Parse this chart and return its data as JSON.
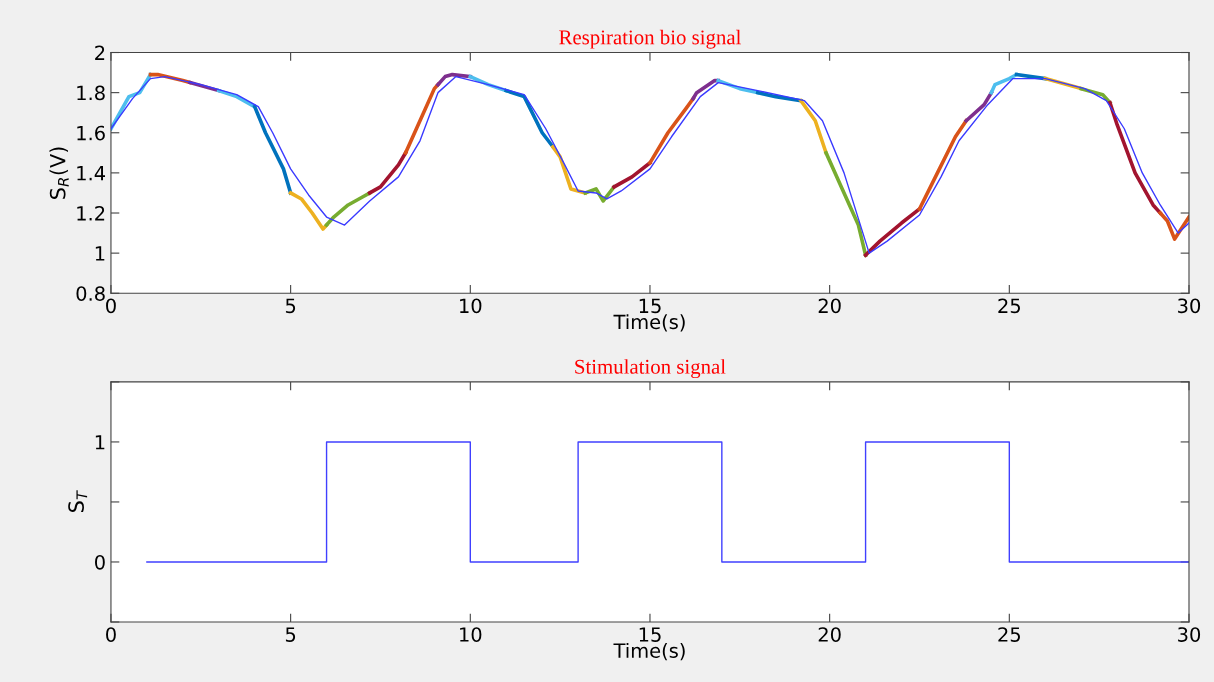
{
  "chart_data": [
    {
      "type": "line",
      "title": "Respiration bio signal",
      "xlabel": "Time(s)",
      "ylabel": "S$_{R}$(V)",
      "xlim": [
        0,
        30
      ],
      "xticks": [
        0,
        5,
        10,
        15,
        20,
        25,
        30
      ],
      "ylim": [
        0.8,
        2
      ],
      "yticks": [
        0.8,
        1,
        1.2,
        1.4,
        1.6,
        1.8,
        2
      ],
      "grid": false,
      "marker": "none",
      "line_style": "solid",
      "series": [
        {
          "color": "#4dbeee",
          "x": [
            0,
            0.5,
            0.8,
            1.0,
            1.1
          ],
          "values": [
            1.62,
            1.78,
            1.8,
            1.86,
            1.89
          ]
        },
        {
          "color": "#d95319",
          "x": [
            1.1,
            1.3,
            2.0,
            2.2
          ],
          "values": [
            1.89,
            1.89,
            1.86,
            1.85
          ]
        },
        {
          "color": "#7e2f8e",
          "x": [
            2.2,
            3.0
          ],
          "values": [
            1.85,
            1.81
          ]
        },
        {
          "color": "#4dbeee",
          "x": [
            3.0,
            3.5,
            4.0
          ],
          "values": [
            1.81,
            1.78,
            1.73
          ]
        },
        {
          "color": "#0072bd",
          "x": [
            4.0,
            4.3,
            4.8,
            5.0
          ],
          "values": [
            1.73,
            1.6,
            1.42,
            1.3
          ]
        },
        {
          "color": "#edb120",
          "x": [
            5.0,
            5.3,
            5.6,
            5.9,
            6.0
          ],
          "values": [
            1.3,
            1.27,
            1.2,
            1.12,
            1.14
          ]
        },
        {
          "color": "#77ac30",
          "x": [
            6.0,
            6.2,
            6.6,
            7.0,
            7.2
          ],
          "values": [
            1.14,
            1.18,
            1.24,
            1.28,
            1.3
          ]
        },
        {
          "color": "#a2142f",
          "x": [
            7.2,
            7.5,
            8.0,
            8.2
          ],
          "values": [
            1.3,
            1.33,
            1.44,
            1.5
          ]
        },
        {
          "color": "#d95319",
          "x": [
            8.2,
            8.5,
            9.0,
            9.1
          ],
          "values": [
            1.5,
            1.62,
            1.82,
            1.84
          ]
        },
        {
          "color": "#7e2f8e",
          "x": [
            9.1,
            9.3,
            9.5,
            10.0
          ],
          "values": [
            1.84,
            1.88,
            1.89,
            1.88
          ]
        },
        {
          "color": "#4dbeee",
          "x": [
            10.0,
            10.5,
            11.0
          ],
          "values": [
            1.88,
            1.84,
            1.81
          ]
        },
        {
          "color": "#0072bd",
          "x": [
            11.0,
            11.5,
            12.0,
            12.3
          ],
          "values": [
            1.81,
            1.78,
            1.6,
            1.53
          ]
        },
        {
          "color": "#edb120",
          "x": [
            12.3,
            12.5,
            12.8,
            13.2
          ],
          "values": [
            1.53,
            1.48,
            1.32,
            1.3
          ]
        },
        {
          "color": "#77ac30",
          "x": [
            13.2,
            13.5,
            13.7,
            14.0
          ],
          "values": [
            1.3,
            1.32,
            1.26,
            1.33
          ]
        },
        {
          "color": "#a2142f",
          "x": [
            14.0,
            14.5,
            15.0
          ],
          "values": [
            1.33,
            1.38,
            1.45
          ]
        },
        {
          "color": "#d95319",
          "x": [
            15.0,
            15.5,
            16.0,
            16.2
          ],
          "values": [
            1.45,
            1.6,
            1.72,
            1.77
          ]
        },
        {
          "color": "#7e2f8e",
          "x": [
            16.2,
            16.3,
            16.8,
            16.9
          ],
          "values": [
            1.77,
            1.8,
            1.86,
            1.86
          ]
        },
        {
          "color": "#4dbeee",
          "x": [
            16.9,
            17.5,
            18.0
          ],
          "values": [
            1.86,
            1.82,
            1.8
          ]
        },
        {
          "color": "#0072bd",
          "x": [
            18.0,
            18.5,
            19.2
          ],
          "values": [
            1.8,
            1.78,
            1.76
          ]
        },
        {
          "color": "#edb120",
          "x": [
            19.2,
            19.6,
            19.9
          ],
          "values": [
            1.76,
            1.66,
            1.5
          ]
        },
        {
          "color": "#77ac30",
          "x": [
            19.9,
            20.3,
            20.8,
            21.0
          ],
          "values": [
            1.5,
            1.34,
            1.14,
            0.99
          ]
        },
        {
          "color": "#a2142f",
          "x": [
            21.0,
            21.4,
            22.0,
            22.5
          ],
          "values": [
            0.99,
            1.06,
            1.15,
            1.22
          ]
        },
        {
          "color": "#d95319",
          "x": [
            22.5,
            23.0,
            23.5,
            23.8
          ],
          "values": [
            1.22,
            1.4,
            1.58,
            1.66
          ]
        },
        {
          "color": "#7e2f8e",
          "x": [
            23.8,
            24.3,
            24.5
          ],
          "values": [
            1.66,
            1.74,
            1.8
          ]
        },
        {
          "color": "#4dbeee",
          "x": [
            24.5,
            24.6,
            25.0,
            25.2
          ],
          "values": [
            1.8,
            1.84,
            1.87,
            1.89
          ]
        },
        {
          "color": "#0072bd",
          "x": [
            25.2,
            26.0
          ],
          "values": [
            1.89,
            1.87
          ]
        },
        {
          "color": "#edb120",
          "x": [
            26.0,
            27.0
          ],
          "values": [
            1.87,
            1.82
          ]
        },
        {
          "color": "#77ac30",
          "x": [
            27.0,
            27.6,
            27.8
          ],
          "values": [
            1.82,
            1.79,
            1.75
          ]
        },
        {
          "color": "#a2142f",
          "x": [
            27.8,
            28.0,
            28.5,
            29.0,
            29.2
          ],
          "values": [
            1.75,
            1.64,
            1.4,
            1.24,
            1.2
          ]
        },
        {
          "color": "#d95319",
          "x": [
            29.2,
            29.4,
            29.6,
            30.0
          ],
          "values": [
            1.2,
            1.16,
            1.07,
            1.18
          ]
        },
        {
          "color": "#3a3aff",
          "x": [
            0,
            0.6,
            1.1,
            1.5,
            2.5,
            3.5,
            4.1,
            4.5,
            5.0,
            5.5,
            6.0,
            6.5,
            7.2,
            8.0,
            8.6,
            9.1,
            9.6,
            10.5,
            11.5,
            12.1,
            12.6,
            13.0,
            13.5,
            13.8,
            14.2,
            15.0,
            15.6,
            16.4,
            16.9,
            18.0,
            19.3,
            19.8,
            20.4,
            21.1,
            21.6,
            22.5,
            23.1,
            23.6,
            24.4,
            25.1,
            26.0,
            27.1,
            27.7,
            28.2,
            28.7,
            29.2,
            29.7,
            30.0
          ],
          "values": [
            1.62,
            1.77,
            1.87,
            1.88,
            1.84,
            1.79,
            1.73,
            1.6,
            1.42,
            1.29,
            1.18,
            1.14,
            1.26,
            1.38,
            1.56,
            1.8,
            1.88,
            1.84,
            1.79,
            1.62,
            1.45,
            1.31,
            1.3,
            1.27,
            1.31,
            1.42,
            1.58,
            1.78,
            1.85,
            1.81,
            1.76,
            1.66,
            1.4,
            1.0,
            1.06,
            1.19,
            1.38,
            1.56,
            1.74,
            1.87,
            1.87,
            1.82,
            1.76,
            1.62,
            1.4,
            1.24,
            1.1,
            1.15
          ]
        }
      ]
    },
    {
      "type": "step",
      "title": "Stimulation signal",
      "xlabel": "Time(s)",
      "ylabel": "S$_{T}$",
      "xlim": [
        0,
        30
      ],
      "xticks": [
        0,
        5,
        10,
        15,
        20,
        25,
        30
      ],
      "ylim": [
        -0.5,
        1.5
      ],
      "yticks": [
        {
          "value": -0.5,
          "label": null
        },
        0,
        {
          "value": 0.5,
          "label": null
        },
        1,
        {
          "value": 1.5,
          "label": null
        }
      ],
      "grid": false,
      "marker": "none",
      "line_style": "solid",
      "series": [
        {
          "color": "#4040ff",
          "x": [
            1,
            6,
            10,
            13,
            17,
            21,
            25,
            30
          ],
          "values": [
            0,
            1,
            0,
            1,
            0,
            1,
            0,
            0
          ]
        }
      ]
    }
  ]
}
